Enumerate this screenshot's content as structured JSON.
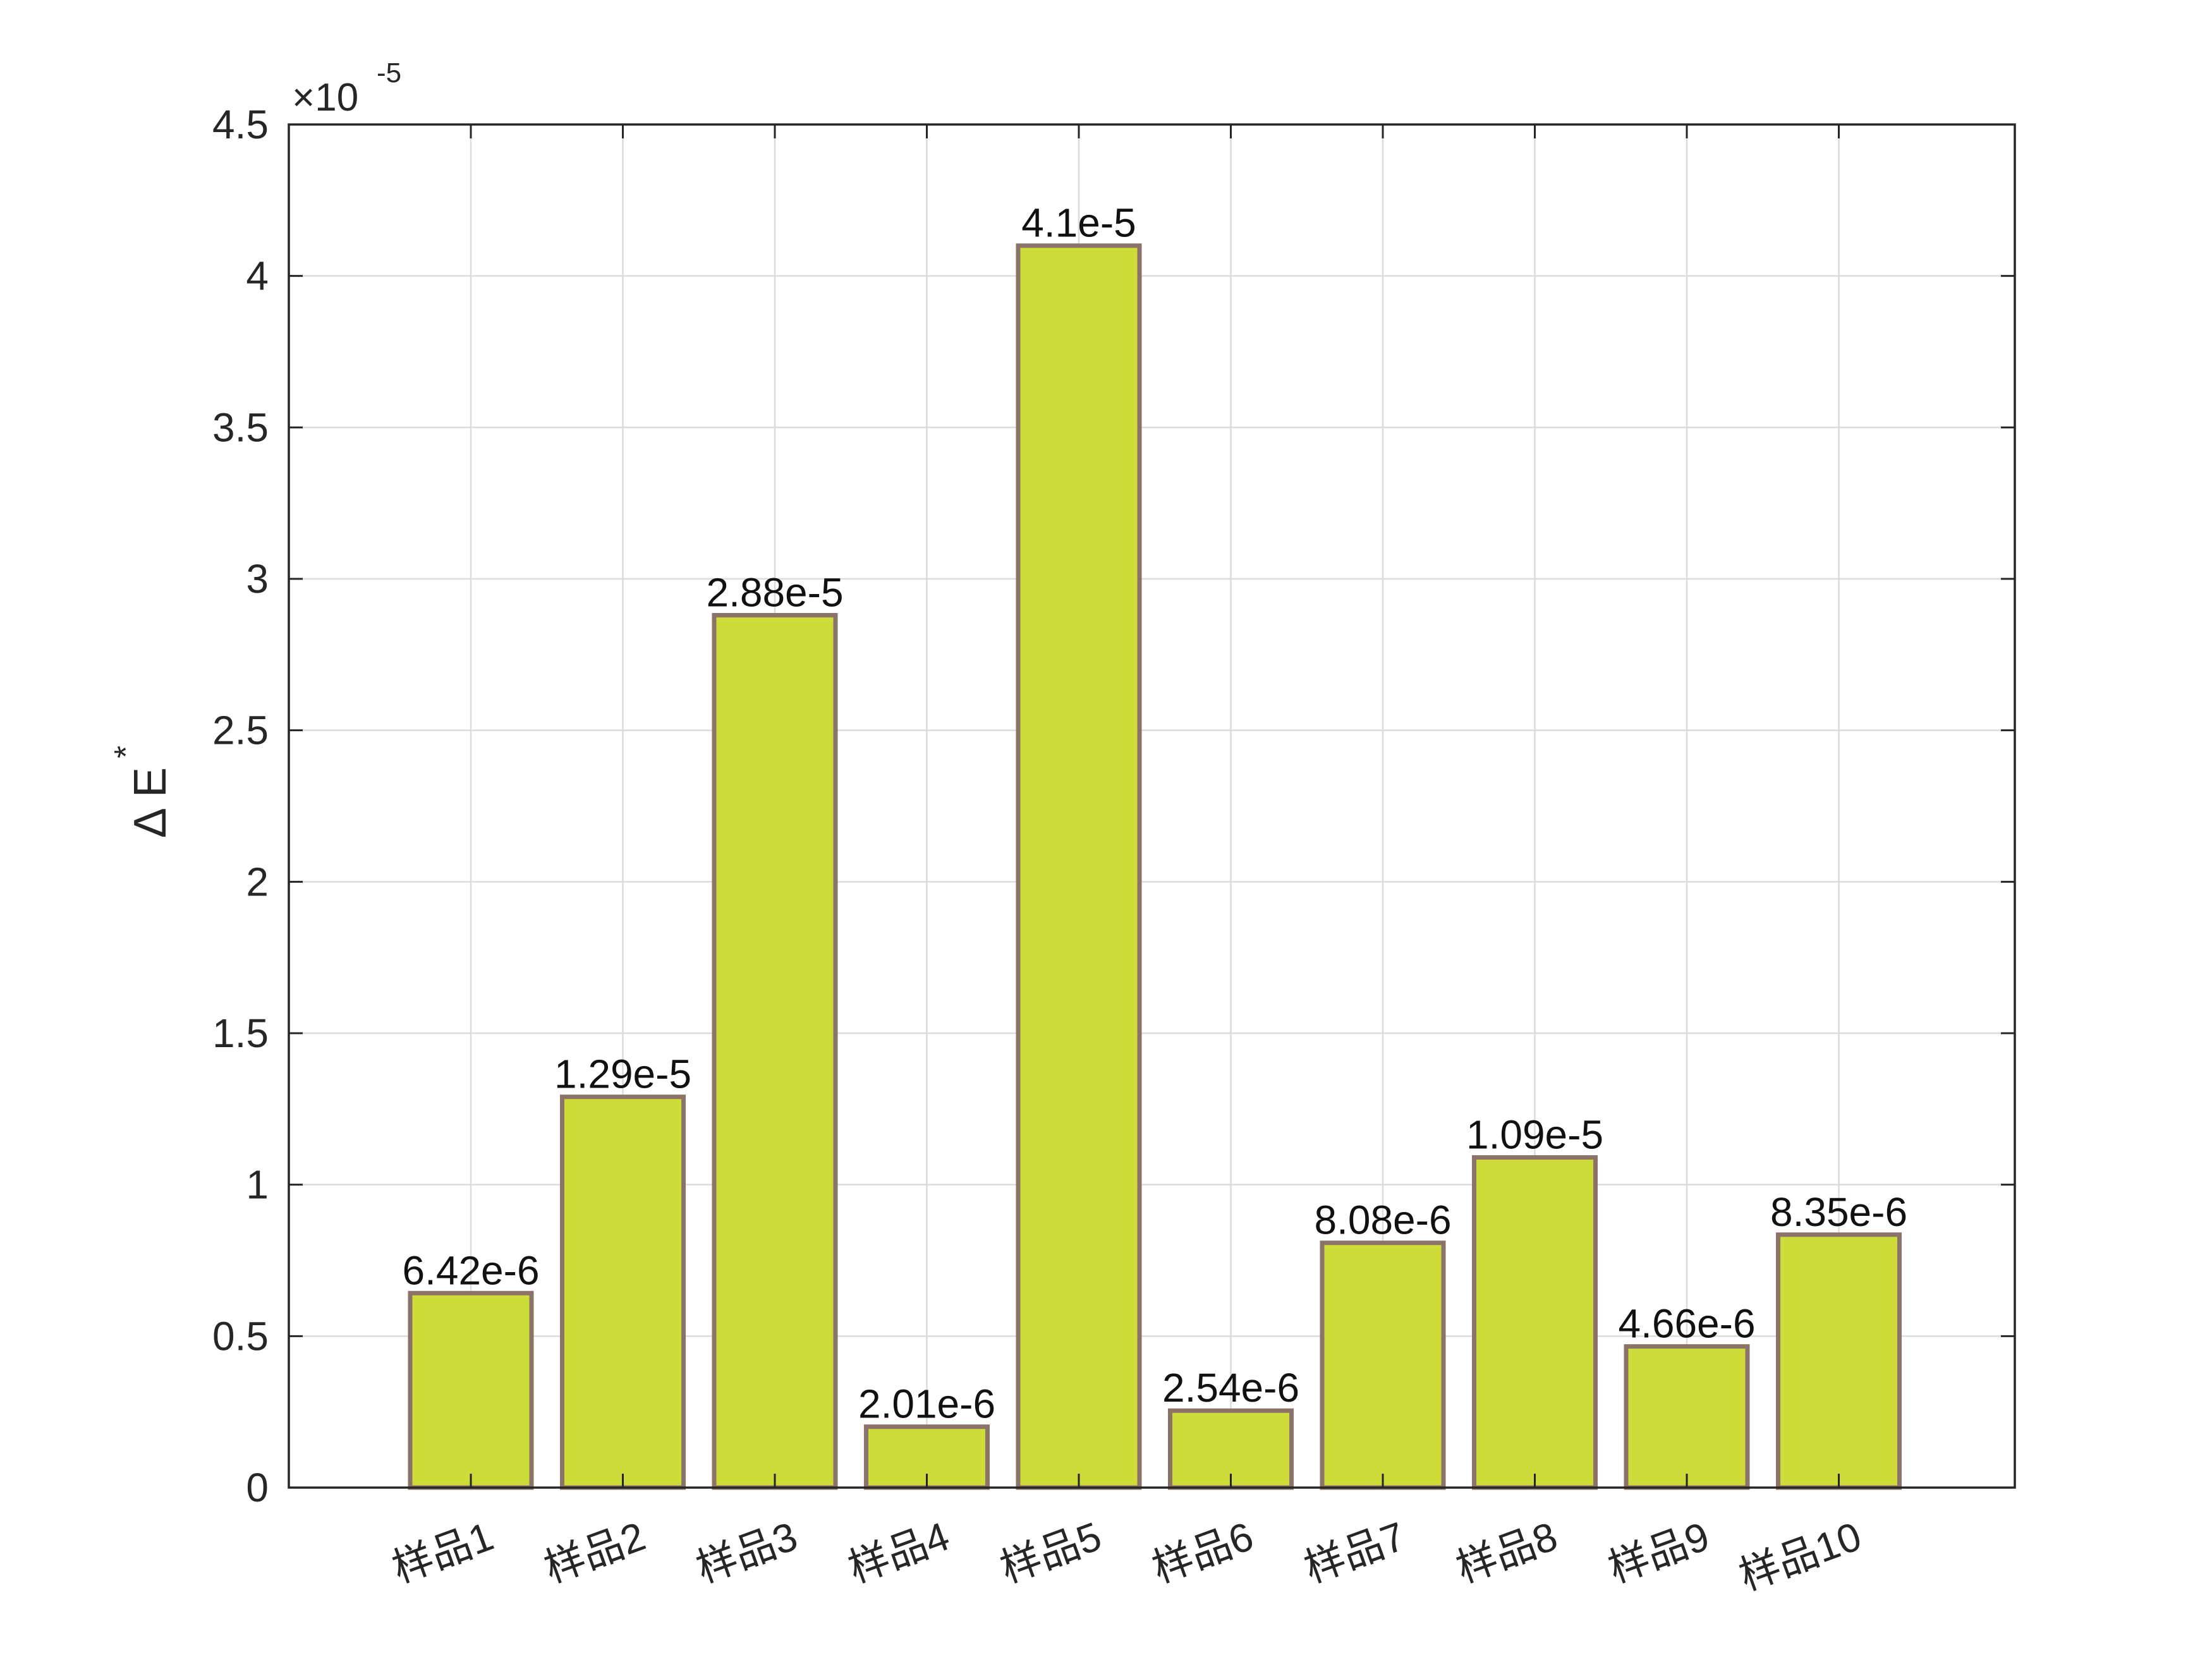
{
  "chart_data": {
    "type": "bar",
    "categories": [
      "样品1",
      "样品2",
      "样品3",
      "样品4",
      "样品5",
      "样品6",
      "样品7",
      "样品8",
      "样品9",
      "样品10"
    ],
    "values": [
      6.42e-06,
      1.29e-05,
      2.88e-05,
      2.01e-06,
      4.1e-05,
      2.54e-06,
      8.08e-06,
      1.09e-05,
      4.66e-06,
      8.35e-06
    ],
    "data_labels": [
      "6.42e-6",
      "1.29e-5",
      "2.88e-5",
      "2.01e-6",
      "4.1e-5",
      "2.54e-6",
      "8.08e-6",
      "1.09e-5",
      "4.66e-6",
      "8.35e-6"
    ],
    "ylabel_main": "Δ E",
    "ylabel_sup": "*",
    "ylim": [
      0,
      4.5
    ],
    "yticks": [
      0,
      0.5,
      1,
      1.5,
      2,
      2.5,
      3,
      3.5,
      4,
      4.5
    ],
    "ytick_labels": [
      "0",
      "0.5",
      "1",
      "1.5",
      "2",
      "2.5",
      "3",
      "3.5",
      "4",
      "4.5"
    ],
    "exponent_base": "×10",
    "exponent_power": "-5",
    "scale": 1e-05,
    "grid": true,
    "bar_fill": "#cddc39",
    "bar_edge": "#8b7369",
    "grid_color": "#dcdcdc",
    "axis_color": "#262626"
  }
}
